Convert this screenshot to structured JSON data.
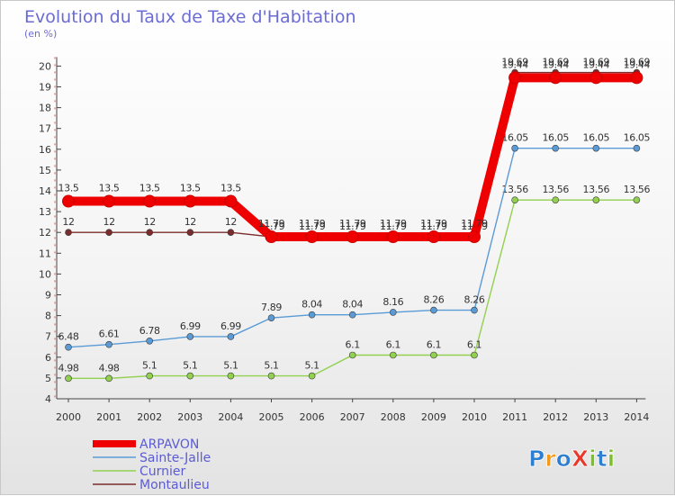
{
  "chart_data": {
    "type": "line",
    "title": "Evolution du Taux de Taxe d'Habitation",
    "subtitle": "(en %)",
    "x": [
      "2000",
      "2001",
      "2002",
      "2003",
      "2004",
      "2005",
      "2006",
      "2007",
      "2008",
      "2009",
      "2010",
      "2011",
      "2012",
      "2013",
      "2014"
    ],
    "ylim": [
      4,
      20
    ],
    "yticks": [
      "4",
      "5",
      "6",
      "7",
      "8",
      "9",
      "10",
      "11",
      "12",
      "13",
      "14",
      "15",
      "16",
      "17",
      "18",
      "19",
      "20"
    ],
    "grid": false,
    "legend_position": "bottom-left",
    "series": [
      {
        "name": "ARPAVON",
        "color": "#ee0000",
        "values": [
          13.5,
          13.5,
          13.5,
          13.5,
          13.5,
          11.79,
          11.79,
          11.79,
          11.79,
          11.79,
          11.79,
          19.44,
          19.44,
          19.44,
          19.44
        ],
        "labels": [
          "13.5",
          "13.5",
          "13.5",
          "13.5",
          "13.5",
          "11.79",
          "11.79",
          "11.79",
          "11.79",
          "11.79",
          "11.79",
          "19.44",
          "19.44",
          "19.44",
          "19.44"
        ]
      },
      {
        "name": "Sainte-Jalle",
        "color": "#5b9bd5",
        "values": [
          6.48,
          6.61,
          6.78,
          6.99,
          6.99,
          7.89,
          8.04,
          8.04,
          8.16,
          8.26,
          8.26,
          16.05,
          16.05,
          16.05,
          16.05
        ],
        "labels": [
          "6.48",
          "6.61",
          "6.78",
          "6.99",
          "6.99",
          "7.89",
          "8.04",
          "8.04",
          "8.16",
          "8.26",
          "8.26",
          "16.05",
          "16.05",
          "16.05",
          "16.05"
        ]
      },
      {
        "name": "Curnier",
        "color": "#92d050",
        "values": [
          4.98,
          4.98,
          5.1,
          5.1,
          5.1,
          5.1,
          5.1,
          6.1,
          6.1,
          6.1,
          6.1,
          13.56,
          13.56,
          13.56,
          13.56
        ],
        "labels": [
          "4.98",
          "4.98",
          "5.1",
          "5.1",
          "5.1",
          "5.1",
          "5.1",
          "6.1",
          "6.1",
          "6.1",
          "6.1",
          "13.56",
          "13.56",
          "13.56",
          "13.56"
        ]
      },
      {
        "name": "Montaulieu",
        "color": "#7b2c2c",
        "values": [
          12,
          12,
          12,
          12,
          12,
          11.79,
          11.79,
          11.79,
          11.79,
          11.79,
          11.79,
          19.69,
          19.69,
          19.69,
          19.69
        ],
        "labels": [
          "12",
          "12",
          "12",
          "12",
          "12",
          "11.79",
          "11.79",
          "11.79",
          "11.79",
          "11.79",
          "11.79",
          "19.69",
          "19.69",
          "19.69",
          "19.69"
        ]
      }
    ]
  },
  "brand": {
    "logo": "ProXiti",
    "colors": [
      "#2f7fd0",
      "#f29a1d",
      "#2f7fd0",
      "#e8392b",
      "#7bbf2a",
      "#2f7fd0",
      "#7bbf2a"
    ]
  }
}
